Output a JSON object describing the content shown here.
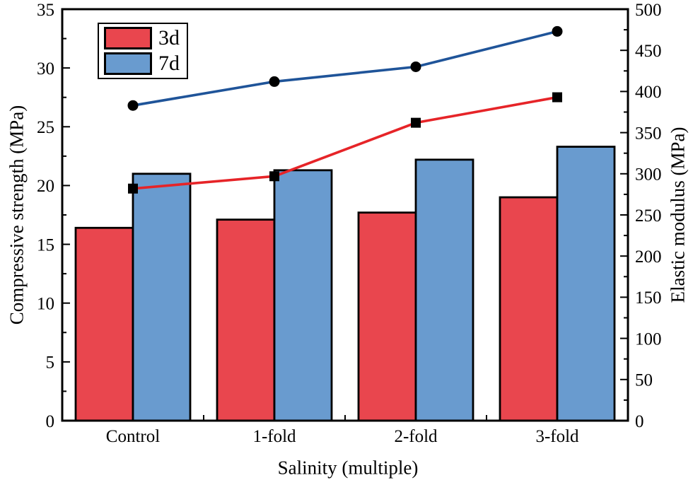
{
  "figure": {
    "background": "#ffffff",
    "frame_color": "#000000",
    "text_color": "#000000"
  },
  "chart_data": {
    "type": "bar+line",
    "title": "",
    "categories": [
      "Control",
      "1-fold",
      "2-fold",
      "3-fold"
    ],
    "bar_series": [
      {
        "name": "3d",
        "color": "#E9464E",
        "axis": "left",
        "values": [
          16.4,
          17.1,
          17.7,
          19.0
        ]
      },
      {
        "name": "7d",
        "color": "#699BCF",
        "axis": "left",
        "values": [
          21.0,
          21.3,
          22.2,
          23.3
        ]
      }
    ],
    "line_series": [
      {
        "name": "3d",
        "color": "#E62428",
        "marker": "square",
        "marker_color": "#000000",
        "axis": "right",
        "values": [
          282,
          297,
          362,
          393
        ]
      },
      {
        "name": "7d",
        "color": "#1F5499",
        "marker": "circle",
        "marker_color": "#000000",
        "axis": "right",
        "values": [
          383,
          412,
          430,
          473
        ]
      }
    ],
    "left_axis": {
      "label": "Compressive strength (MPa)",
      "min": 0,
      "max": 35,
      "major_ticks": [
        0,
        5,
        10,
        15,
        20,
        25,
        30,
        35
      ],
      "minor_step": 2.5
    },
    "right_axis": {
      "label": "Elastic modulus (MPa)",
      "min": 0,
      "max": 500,
      "major_ticks": [
        0,
        50,
        100,
        150,
        200,
        250,
        300,
        350,
        400,
        450,
        500
      ],
      "minor_step": 25
    },
    "x_axis": {
      "label": "Salinity (multiple)"
    },
    "legend": {
      "position": "top-left",
      "entries": [
        {
          "label": "3d",
          "color": "#E9464E"
        },
        {
          "label": "7d",
          "color": "#699BCF"
        }
      ]
    },
    "grid": false
  }
}
